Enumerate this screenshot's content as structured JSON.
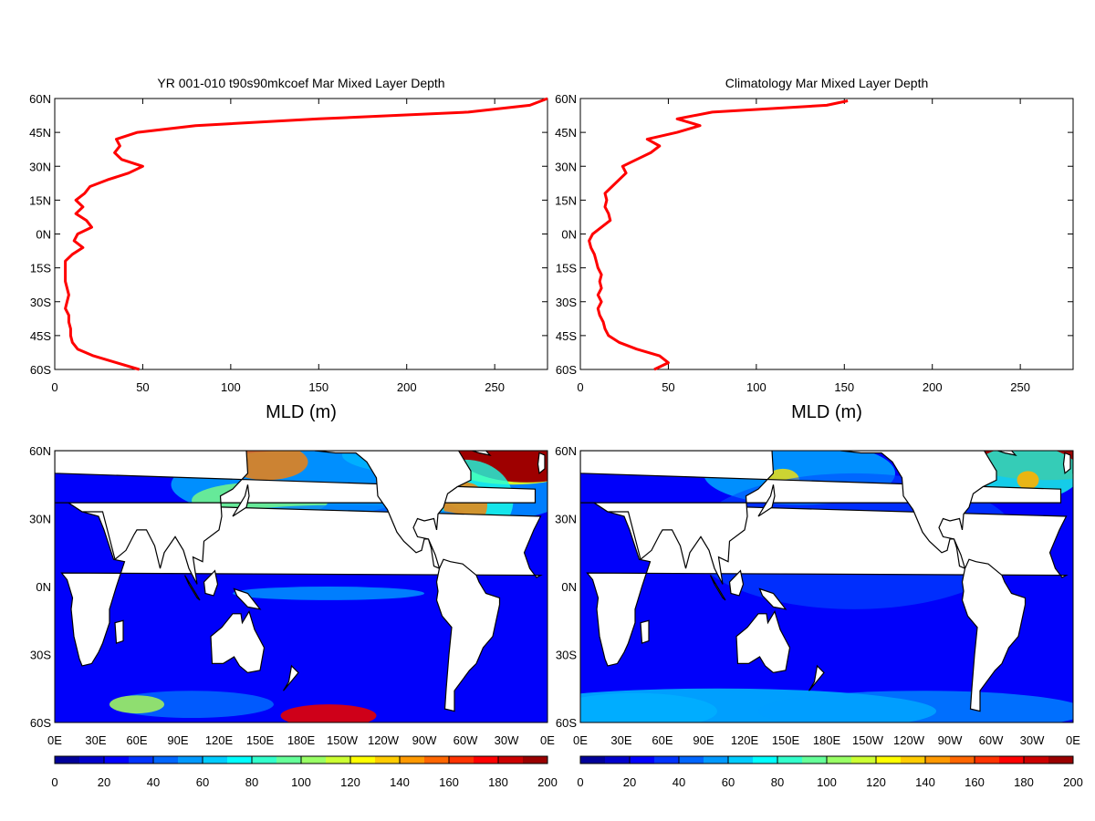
{
  "chart_data": [
    {
      "type": "line",
      "title": "YR 001-010 t90s90mkcoef Mar Mixed Layer Depth",
      "xlabel": "MLD (m)",
      "ylabel": "",
      "xlim": [
        0,
        280
      ],
      "ylim": [
        -60,
        60
      ],
      "x_ticks": [
        "0",
        "50",
        "100",
        "150",
        "200",
        "250"
      ],
      "y_ticks": [
        "60S",
        "45S",
        "30S",
        "15S",
        "0N",
        "15N",
        "30N",
        "45N",
        "60N"
      ],
      "grid": false,
      "series_color": "#ff0000",
      "series": [
        {
          "lat": [
            -60,
            -57,
            -54,
            -51,
            -48,
            -45,
            -42,
            -39,
            -36,
            -33,
            -30,
            -27,
            -24,
            -21,
            -18,
            -15,
            -12,
            -9,
            -6,
            -3,
            0,
            3,
            6,
            9,
            12,
            15,
            18,
            21,
            24,
            27,
            30,
            33,
            36,
            39,
            42,
            45,
            48,
            51,
            54,
            57,
            60
          ],
          "mld": [
            48,
            35,
            22,
            13,
            10,
            9,
            9,
            8,
            8,
            6,
            7,
            8,
            7,
            6,
            6,
            6,
            6,
            10,
            16,
            11,
            13,
            21,
            18,
            12,
            16,
            12,
            17,
            20,
            30,
            42,
            50,
            38,
            34,
            37,
            35,
            47,
            80,
            150,
            235,
            270,
            280
          ]
        }
      ]
    },
    {
      "type": "line",
      "title": "Climatology Mar Mixed Layer Depth",
      "xlabel": "MLD (m)",
      "ylabel": "",
      "xlim": [
        0,
        280
      ],
      "ylim": [
        -60,
        60
      ],
      "x_ticks": [
        "0",
        "50",
        "100",
        "150",
        "200",
        "250"
      ],
      "y_ticks": [
        "60S",
        "45S",
        "30S",
        "15S",
        "0N",
        "15N",
        "30N",
        "45N",
        "60N"
      ],
      "grid": false,
      "series_color": "#ff0000",
      "series": [
        {
          "lat": [
            -60,
            -57,
            -54,
            -51,
            -48,
            -45,
            -42,
            -39,
            -36,
            -33,
            -30,
            -27,
            -24,
            -21,
            -18,
            -15,
            -12,
            -9,
            -6,
            -3,
            0,
            3,
            6,
            9,
            12,
            15,
            18,
            21,
            24,
            27,
            30,
            33,
            36,
            39,
            42,
            45,
            48,
            51,
            54,
            57,
            59
          ],
          "mld": [
            42,
            50,
            45,
            32,
            22,
            16,
            14,
            13,
            11,
            10,
            12,
            10,
            12,
            11,
            12,
            10,
            9,
            8,
            6,
            5,
            7,
            12,
            17,
            16,
            14,
            15,
            14,
            18,
            22,
            26,
            24,
            32,
            40,
            45,
            38,
            55,
            68,
            55,
            75,
            140,
            152
          ]
        }
      ]
    },
    {
      "type": "heatmap",
      "title": "",
      "x_ticks": [
        "0E",
        "30E",
        "60E",
        "90E",
        "120E",
        "150E",
        "180E",
        "150W",
        "120W",
        "90W",
        "60W",
        "30W",
        "0E"
      ],
      "y_ticks": [
        "60S",
        "30S",
        "0N",
        "30N",
        "60N"
      ],
      "lon_range": [
        0,
        360
      ],
      "lat_range": [
        -60,
        60
      ],
      "colorbar_ticks": [
        "0",
        "20",
        "40",
        "60",
        "80",
        "100",
        "120",
        "140",
        "160",
        "180",
        "200"
      ],
      "colorbar_range": [
        0,
        200
      ]
    },
    {
      "type": "heatmap",
      "title": "",
      "x_ticks": [
        "0E",
        "30E",
        "60E",
        "90E",
        "120E",
        "150E",
        "180E",
        "150W",
        "120W",
        "90W",
        "60W",
        "30W",
        "0E"
      ],
      "y_ticks": [
        "60S",
        "30S",
        "0N",
        "30N",
        "60N"
      ],
      "lon_range": [
        0,
        360
      ],
      "lat_range": [
        -60,
        60
      ],
      "colorbar_ticks": [
        "0",
        "20",
        "40",
        "60",
        "80",
        "100",
        "120",
        "140",
        "160",
        "180",
        "200"
      ],
      "colorbar_range": [
        0,
        200
      ]
    }
  ]
}
